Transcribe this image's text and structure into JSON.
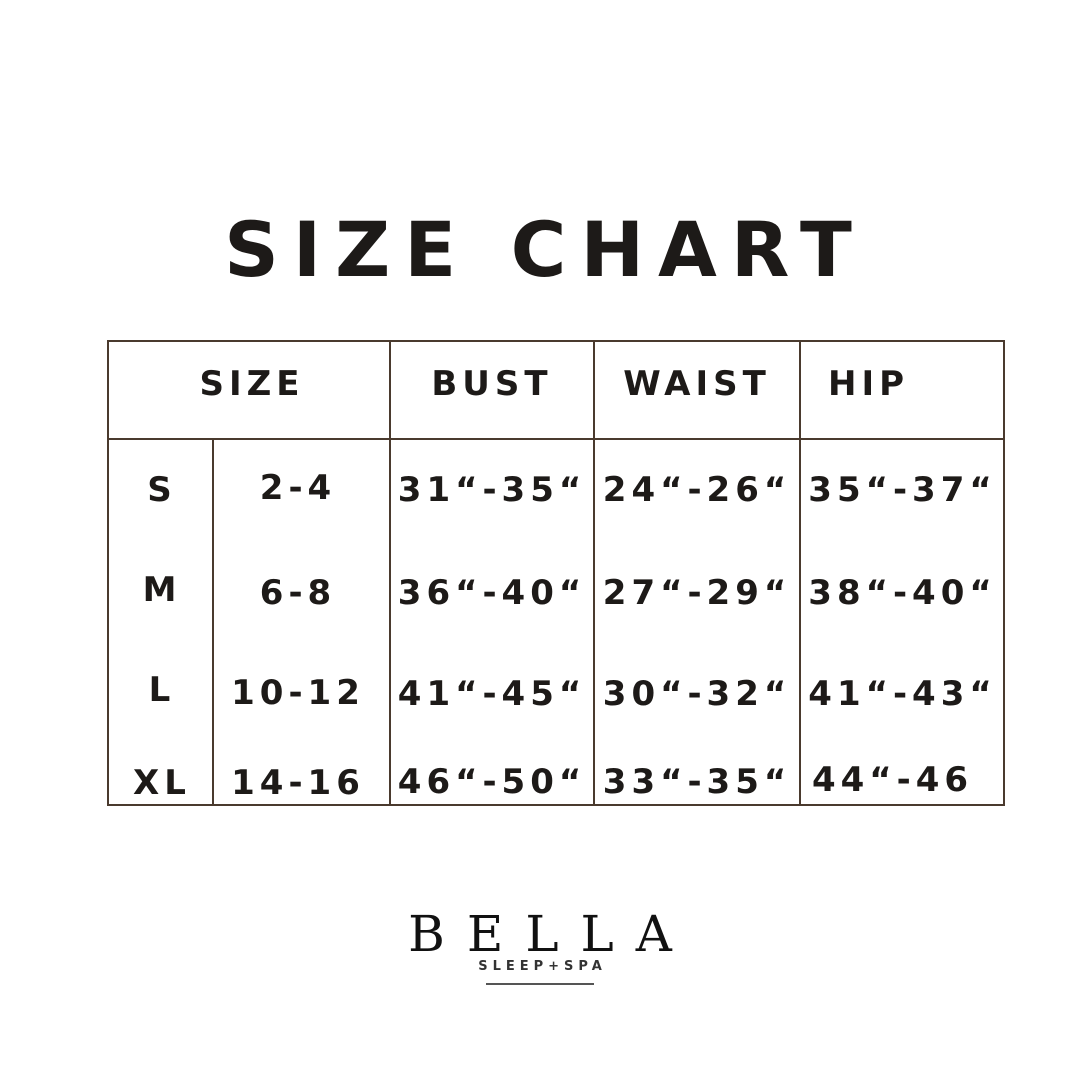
{
  "title": "SIZE CHART",
  "table": {
    "headers": [
      "SIZE",
      "BUST",
      "WAIST",
      "HIP"
    ],
    "rows": [
      {
        "size": "S",
        "us": "2-4",
        "bust": "31“-35“",
        "waist": "24“-26“",
        "hip": "35“-37“"
      },
      {
        "size": "M",
        "us": "6-8",
        "bust": "36“-40“",
        "waist": "27“-29“",
        "hip": "38“-40“"
      },
      {
        "size": "L",
        "us": "10-12",
        "bust": "41“-45“",
        "waist": "30“-32“",
        "hip": "41“-43“"
      },
      {
        "size": "XL",
        "us": "14-16",
        "bust": "46“-50“",
        "waist": "33“-35“",
        "hip": "44“-46"
      }
    ],
    "border_color": "#4a3a2e"
  },
  "logo": {
    "brand": "BELLA",
    "tagline": "SLEEP+SPA"
  }
}
